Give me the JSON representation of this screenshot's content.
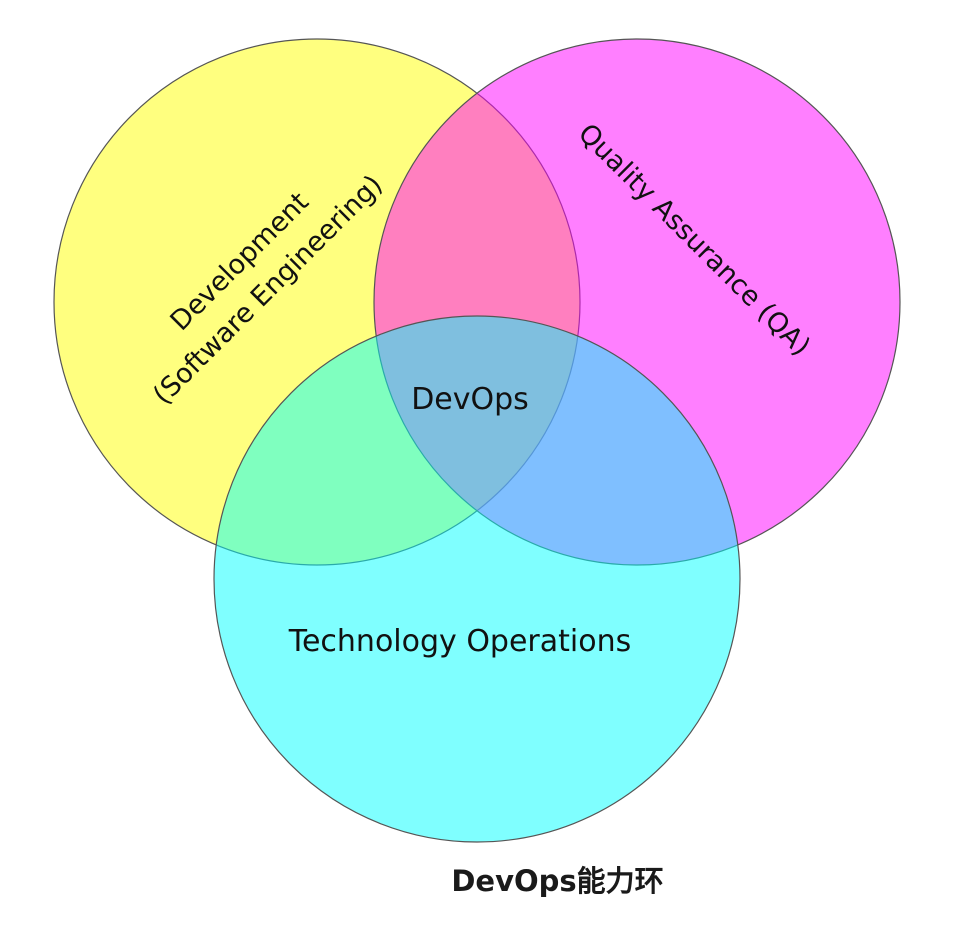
{
  "diagram": {
    "type": "venn",
    "sets": [
      {
        "id": "development",
        "line1": "Development",
        "line2": "(Software Engineering)",
        "color": "#ffff00"
      },
      {
        "id": "qa",
        "label": "Quality Assurance (QA)",
        "color": "#ff00ff"
      },
      {
        "id": "operations",
        "label": "Technology Operations",
        "color": "#00ffff"
      }
    ],
    "center_label": "DevOps",
    "outline_color": "#555555"
  },
  "caption": "DevOps能力环"
}
